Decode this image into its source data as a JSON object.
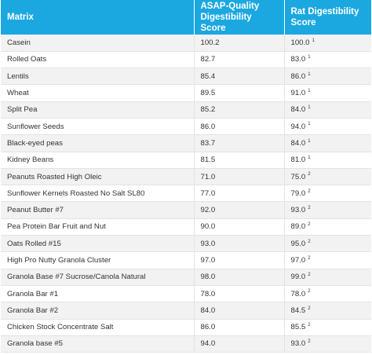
{
  "table": {
    "headers": {
      "matrix": "Matrix",
      "asap_line1": "ASAP-Quality",
      "asap_line2": "Digestibility Score",
      "rat_line1": "Rat Digestibility",
      "rat_line2": "Score"
    },
    "rows": [
      {
        "matrix": "Casein",
        "asap": "100.2",
        "rat": "100.0",
        "note": "1"
      },
      {
        "matrix": "Rolled Oats",
        "asap": "82.7",
        "rat": "83.0",
        "note": "1"
      },
      {
        "matrix": "Lentils",
        "asap": "85.4",
        "rat": "86.0",
        "note": "1"
      },
      {
        "matrix": "Wheat",
        "asap": "89.5",
        "rat": "91.0",
        "note": "1"
      },
      {
        "matrix": "Split Pea",
        "asap": "85.2",
        "rat": "84.0",
        "note": "1"
      },
      {
        "matrix": "Sunflower Seeds",
        "asap": "86.0",
        "rat": "94.0",
        "note": "1"
      },
      {
        "matrix": "Black-eyed peas",
        "asap": "83.7",
        "rat": "84.0",
        "note": "1"
      },
      {
        "matrix": "Kidney Beans",
        "asap": "81.5",
        "rat": "81.0",
        "note": "1"
      },
      {
        "matrix": "Peanuts Roasted High Oleic",
        "asap": "71.0",
        "rat": "75.0",
        "note": "2"
      },
      {
        "matrix": "Sunflower Kernels Roasted No Salt SL80",
        "asap": "77.0",
        "rat": "79.0",
        "note": "2"
      },
      {
        "matrix": "Peanut Butter #7",
        "asap": "92.0",
        "rat": "93.0",
        "note": "2"
      },
      {
        "matrix": "Pea Protein Bar Fruit and Nut",
        "asap": "90.0",
        "rat": "89.0",
        "note": "2"
      },
      {
        "matrix": "Oats Rolled #15",
        "asap": "93.0",
        "rat": "95.0",
        "note": "2"
      },
      {
        "matrix": "High Pro Nutty Granola Cluster",
        "asap": "97.0",
        "rat": "97.0",
        "note": "2"
      },
      {
        "matrix": "Granola Base #7 Sucrose/Canola Natural",
        "asap": "98.0",
        "rat": "99.0",
        "note": "2"
      },
      {
        "matrix": "Granola Bar #1",
        "asap": "78.0",
        "rat": "78.0",
        "note": "2"
      },
      {
        "matrix": "Granola Bar #2",
        "asap": "84.0",
        "rat": "84.5",
        "note": "2"
      },
      {
        "matrix": "Chicken Stock Concentrate Salt",
        "asap": "86.0",
        "rat": "85.5",
        "note": "2"
      },
      {
        "matrix": "Granola base #5",
        "asap": "94.0",
        "rat": "93.0",
        "note": "2"
      }
    ]
  }
}
